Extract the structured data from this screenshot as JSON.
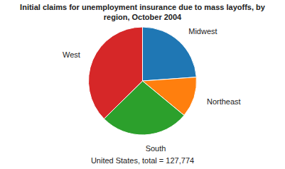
{
  "chart_data": {
    "type": "pie",
    "title": [
      "Initial claims for unemployment insurance due to mass layoffs, by",
      "region, October 2004"
    ],
    "subtitle": "United States, total = 127,774",
    "categories": [
      "Midwest",
      "Northeast",
      "South",
      "West"
    ],
    "values": [
      30500,
      15500,
      34000,
      47774
    ]
  }
}
